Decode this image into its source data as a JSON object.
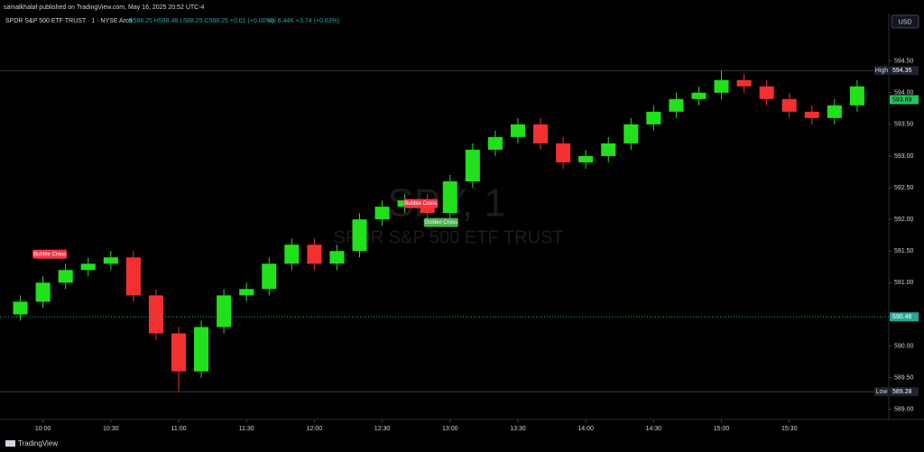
{
  "header": {
    "published": "samalkhalaf published on TradingView.com, May 16, 2025 20:52 UTC-4",
    "currency": "USD",
    "footer": "TradingView"
  },
  "legend": {
    "symbol": "SPDR S&P 500 ETF TRUST · 1 · NYSE Arca",
    "ohlc": "O588.25 H588.48 L588.25 C588.25 +0.01 (+0.00%)",
    "volume": "Vol 6.44K +3.74 (+0.63%)"
  },
  "watermark": {
    "ticker": "SPY, 1",
    "name": "SPDR S&P 500 ETF TRUST"
  },
  "chart_data": {
    "type": "candlestick",
    "up_color": "#22e01c",
    "down_color": "#f23030",
    "x": [
      590,
      600,
      610,
      620,
      630,
      640,
      650,
      660,
      670,
      680,
      690,
      700,
      710,
      720,
      730,
      740,
      750,
      760,
      770,
      780,
      790,
      800,
      810,
      820,
      830,
      840,
      850,
      860,
      870,
      880,
      890,
      900,
      910,
      920,
      930,
      940,
      950,
      960
    ],
    "open": [
      590.5,
      590.7,
      591.0,
      591.2,
      591.3,
      591.4,
      590.8,
      590.2,
      589.6,
      590.3,
      590.8,
      590.9,
      591.3,
      591.6,
      591.3,
      591.5,
      592.0,
      592.2,
      592.3,
      592.1,
      592.6,
      593.1,
      593.3,
      593.5,
      593.2,
      592.9,
      593.0,
      593.2,
      593.5,
      593.7,
      593.9,
      594.0,
      594.2,
      594.1,
      593.9,
      593.7,
      593.6,
      593.8
    ],
    "high": [
      590.8,
      591.1,
      591.3,
      591.4,
      591.5,
      591.5,
      590.9,
      590.3,
      590.4,
      590.9,
      591.0,
      591.4,
      591.7,
      591.7,
      591.6,
      592.1,
      592.3,
      592.4,
      592.4,
      592.7,
      593.2,
      593.4,
      593.6,
      593.6,
      593.3,
      593.1,
      593.3,
      593.6,
      593.8,
      594.0,
      594.1,
      594.35,
      594.3,
      594.2,
      594.0,
      593.8,
      593.9,
      594.2
    ],
    "low": [
      590.4,
      590.6,
      590.9,
      591.1,
      591.2,
      590.7,
      590.1,
      589.28,
      589.5,
      590.2,
      590.7,
      590.8,
      591.2,
      591.2,
      591.2,
      591.4,
      591.9,
      592.1,
      592.0,
      592.0,
      592.5,
      593.0,
      593.2,
      593.1,
      592.8,
      592.8,
      592.9,
      593.1,
      593.4,
      593.6,
      593.8,
      593.9,
      594.0,
      593.8,
      593.6,
      593.5,
      593.5,
      593.7
    ],
    "close": [
      590.7,
      591.0,
      591.2,
      591.3,
      591.4,
      590.8,
      590.2,
      589.6,
      590.3,
      590.8,
      590.9,
      591.3,
      591.6,
      591.3,
      591.5,
      592.0,
      592.2,
      592.3,
      592.1,
      592.6,
      593.1,
      593.3,
      593.5,
      593.2,
      592.9,
      593.0,
      593.2,
      593.5,
      593.7,
      593.9,
      594.0,
      594.2,
      594.1,
      593.9,
      593.7,
      593.6,
      593.8,
      594.1
    ],
    "xlim": [
      581,
      974
    ],
    "ylim": [
      588.84,
      595.25
    ],
    "xticks": [
      {
        "value": 600,
        "label": "10:00"
      },
      {
        "value": 630,
        "label": "10:30"
      },
      {
        "value": 660,
        "label": "11:00"
      },
      {
        "value": 690,
        "label": "11:30"
      },
      {
        "value": 720,
        "label": "12:00"
      },
      {
        "value": 750,
        "label": "12:30"
      },
      {
        "value": 780,
        "label": "13:00"
      },
      {
        "value": 810,
        "label": "13:30"
      },
      {
        "value": 840,
        "label": "14:00"
      },
      {
        "value": 870,
        "label": "14:30"
      },
      {
        "value": 900,
        "label": "15:00"
      },
      {
        "value": 930,
        "label": "15:30"
      }
    ],
    "yticks": [
      {
        "value": 594.5,
        "label": "594.50"
      },
      {
        "value": 594,
        "label": "594.00"
      },
      {
        "value": 593.5,
        "label": "593.50"
      },
      {
        "value": 593,
        "label": "593.00"
      },
      {
        "value": 592.5,
        "label": "592.50"
      },
      {
        "value": 592,
        "label": "592.00"
      },
      {
        "value": 591.5,
        "label": "591.50"
      },
      {
        "value": 591,
        "label": "591.00"
      },
      {
        "value": 590,
        "label": "590.00"
      },
      {
        "value": 589.5,
        "label": "589.50"
      },
      {
        "value": 589,
        "label": "589.00"
      }
    ],
    "price_lines": [
      {
        "label": "High",
        "value": 594.35
      },
      {
        "label": "Low",
        "value": 589.28
      }
    ],
    "last_price": 590.46,
    "ma_value": 593.89,
    "annotations": [
      {
        "text": "Bubble Cross",
        "x": 603,
        "y": 591.45,
        "color": "#f23645"
      },
      {
        "text": "Bubble Cross",
        "x": 767,
        "y": 592.25,
        "color": "#f23645"
      },
      {
        "text": "Golden Cross",
        "x": 776,
        "y": 591.95,
        "color": "#4caf50"
      }
    ]
  }
}
